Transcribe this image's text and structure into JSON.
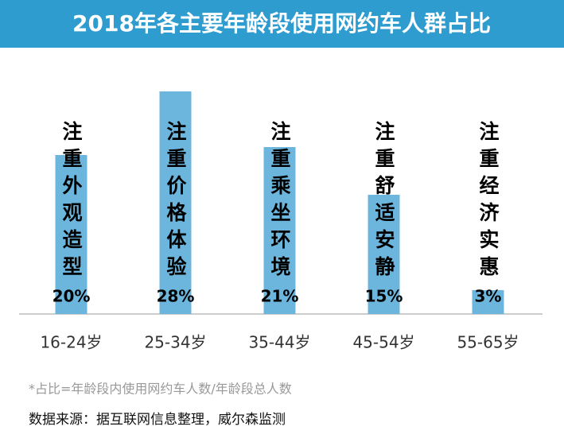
{
  "chart_data": {
    "type": "bar",
    "title": "2018年各主要年龄段使用网约车人群占比",
    "categories": [
      "16-24岁",
      "25-34岁",
      "35-44岁",
      "45-54岁",
      "55-65岁"
    ],
    "values": [
      20,
      28,
      21,
      15,
      3
    ],
    "value_labels": [
      "20%",
      "28%",
      "21%",
      "15%",
      "3%"
    ],
    "bar_annotations": [
      "注重外观造型",
      "注重价格体验",
      "注重乘坐环境",
      "注重舒适安静",
      "注重经济实惠"
    ],
    "color": "#6cb6de",
    "title_color": "#2f9cd0",
    "ylim": [
      0,
      30
    ],
    "footnote": "*占比=年龄段内使用网约车人数/年龄段总人数",
    "source": "数据来源：据互联网信息整理，威尔森监测"
  }
}
